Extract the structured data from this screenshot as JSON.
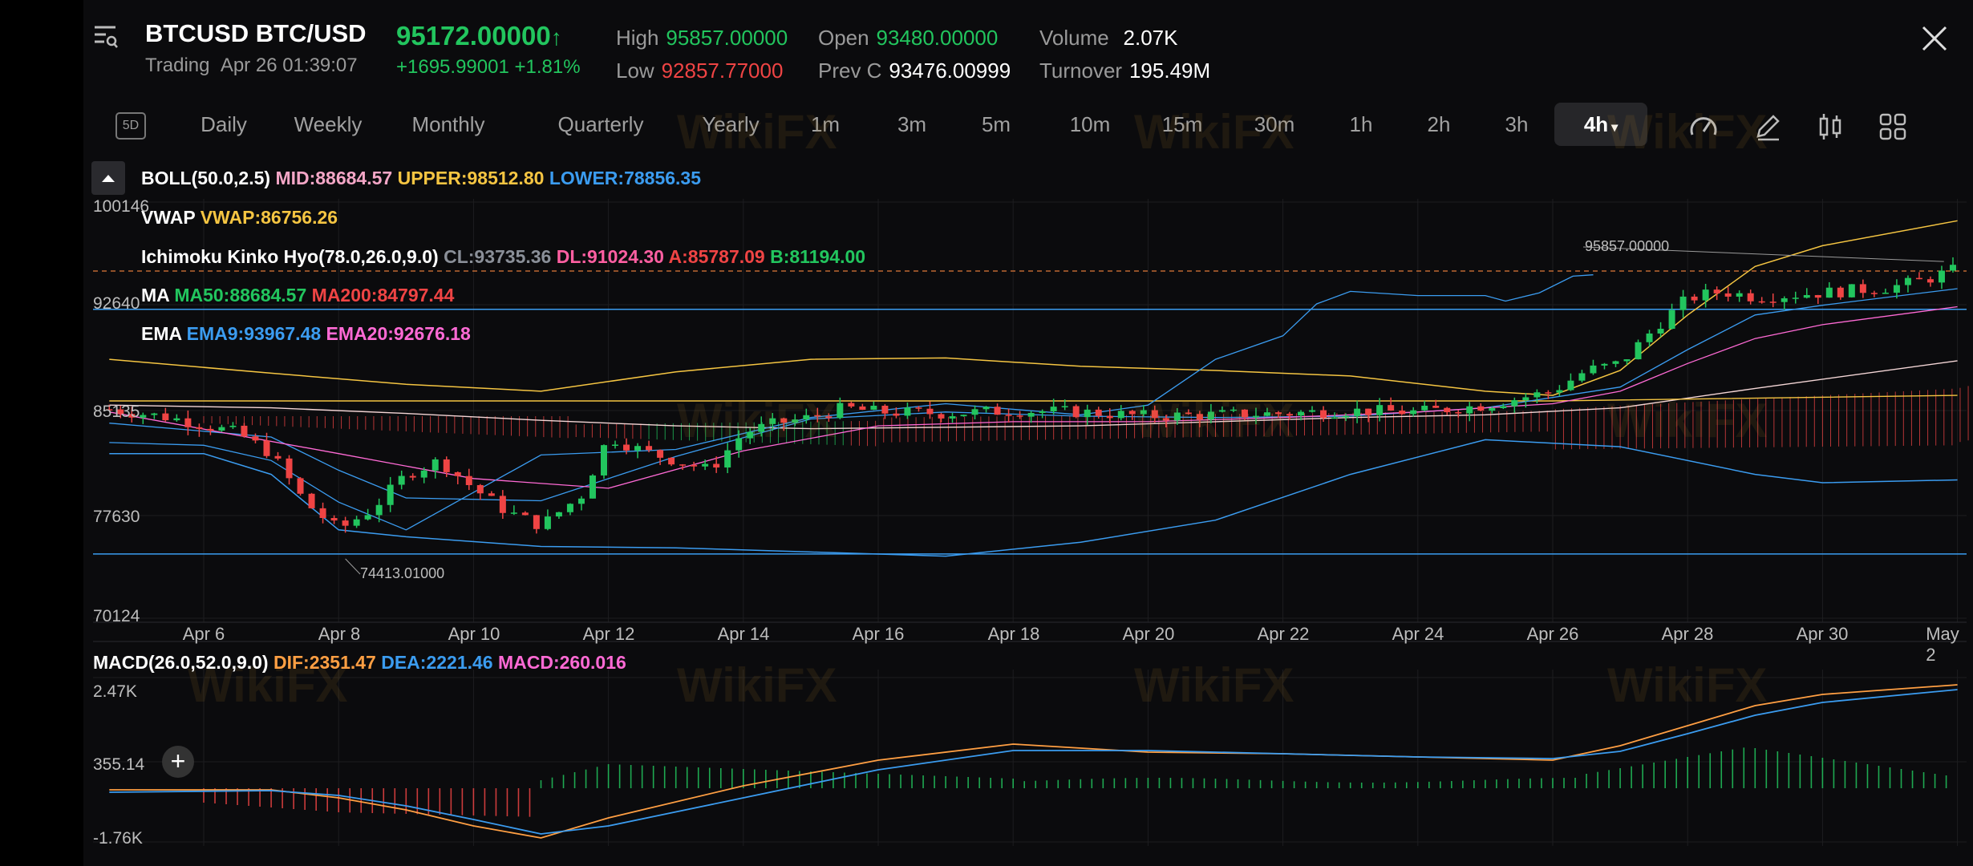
{
  "header": {
    "symbol": "BTCUSD",
    "pair": "BTC/USD",
    "status_label": "Trading",
    "datetime": "Apr 26 01:39:07",
    "price": "95172.00000",
    "price_arrow": "↑",
    "change_abs": "+1695.99001",
    "change_pct": "+1.81%",
    "stats": {
      "high_label": "High",
      "high": "95857.00000",
      "low_label": "Low",
      "low": "92857.77000",
      "open_label": "Open",
      "open": "93480.00000",
      "prevc_label": "Prev C",
      "prevc": "93476.00999",
      "volume_label": "Volume",
      "volume": "2.07K",
      "turnover_label": "Turnover",
      "turnover": "195.49M"
    }
  },
  "timeframes": {
    "icon_label": "5D",
    "items": [
      "Daily",
      "Weekly",
      "Monthly",
      "Quarterly",
      "Yearly",
      "1m",
      "3m",
      "5m",
      "10m",
      "15m",
      "30m",
      "1h",
      "2h",
      "3h"
    ],
    "active": "4h",
    "active_caret": "▾"
  },
  "indicators": {
    "boll": {
      "name": "BOLL(50.0,2.5)",
      "mid": "MID:88684.57",
      "upper": "UPPER:98512.80",
      "lower": "LOWER:78856.35"
    },
    "vwap": {
      "name": "VWAP",
      "value": "VWAP:86756.26"
    },
    "ichimoku": {
      "name": "Ichimoku Kinko Hyo(78.0,26.0,9.0)",
      "cl": "CL:93735.36",
      "dl": "DL:91024.30",
      "a": "A:85787.09",
      "b": "B:81194.00"
    },
    "ma": {
      "name": "MA",
      "ma50": "MA50:88684.57",
      "ma200": "MA200:84797.44"
    },
    "ema": {
      "name": "EMA",
      "ema9": "EMA9:93967.48",
      "ema20": "EMA20:92676.18"
    }
  },
  "price_axis": [
    "100146",
    "92640",
    "85135",
    "77630",
    "70124"
  ],
  "date_axis": [
    "Apr 6",
    "Apr 8",
    "Apr 10",
    "Apr 12",
    "Apr 14",
    "Apr 16",
    "Apr 18",
    "Apr 20",
    "Apr 22",
    "Apr 24",
    "Apr 26",
    "Apr 28",
    "Apr 30",
    "May 2"
  ],
  "annotations": {
    "high_marker": "95857.00000",
    "low_marker": "74413.01000"
  },
  "macd": {
    "name": "MACD(26.0,52.0,9.0)",
    "dif": "DIF:2351.47",
    "dea": "DEA:2221.46",
    "macd": "MACD:260.016",
    "axis": [
      "2.47K",
      "355.14",
      "-1.76K"
    ]
  },
  "watermark_text": "WikiFX",
  "colors": {
    "up": "#22c55e",
    "down": "#ef4444",
    "boll_upper": "#f5c542",
    "boll_lower": "#3b9cf0",
    "mid": "#f4a6c6",
    "vwap": "#f5c542",
    "cl": "#8a8f98",
    "dl": "#ff5fa2",
    "ema9": "#3b9cf0",
    "ema20": "#ff6ad5",
    "dif": "#ff9f43",
    "dea": "#3b9cf0",
    "macd": "#ff6ad5"
  }
}
